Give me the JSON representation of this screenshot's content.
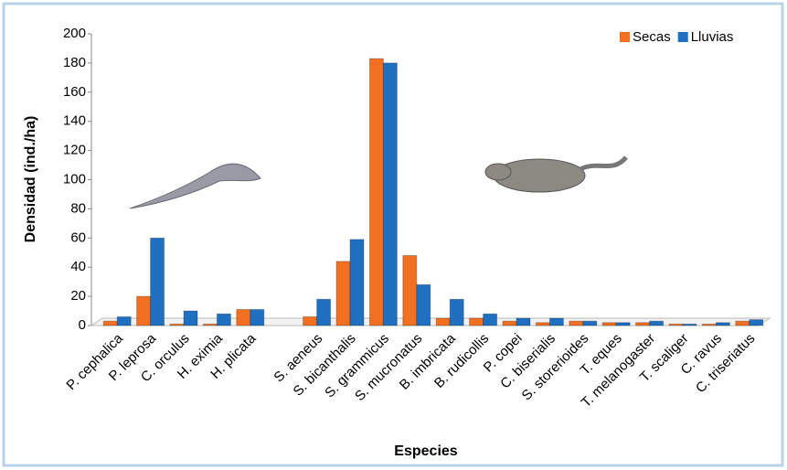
{
  "chart_data": {
    "type": "bar",
    "y_label": "Densidad (ind./ha)",
    "x_label": "Especies",
    "categories": [
      "P. cephalica",
      "P. leprosa",
      "C. orculus",
      "H. eximia",
      "H. plicata",
      null,
      "S. aeneus",
      "S. bicanthalis",
      "S. grammicus",
      "S. mucronatus",
      "B. imbricata",
      "B. rudicollis",
      "P. copei",
      "C. biserialis",
      "S. storerioides",
      "T. eques",
      "T. melanogaster",
      "T. scaliger",
      "C. ravus",
      "C. triseriatus"
    ],
    "series": [
      {
        "name": "Secas",
        "color": "#f36f21",
        "values": [
          3,
          20,
          1,
          1,
          11,
          null,
          6,
          44,
          183,
          48,
          5,
          5,
          3,
          2,
          3,
          2,
          2,
          1,
          1,
          3
        ]
      },
      {
        "name": "Lluvias",
        "color": "#1f70c1",
        "values": [
          6,
          60,
          10,
          8,
          11,
          null,
          18,
          59,
          180,
          28,
          18,
          8,
          5,
          5,
          3,
          2,
          3,
          1,
          2,
          4
        ]
      }
    ],
    "ylim": [
      0,
      200
    ],
    "yticks": [
      0,
      20,
      40,
      60,
      80,
      100,
      120,
      140,
      160,
      180,
      200
    ],
    "legend": "top-right"
  }
}
